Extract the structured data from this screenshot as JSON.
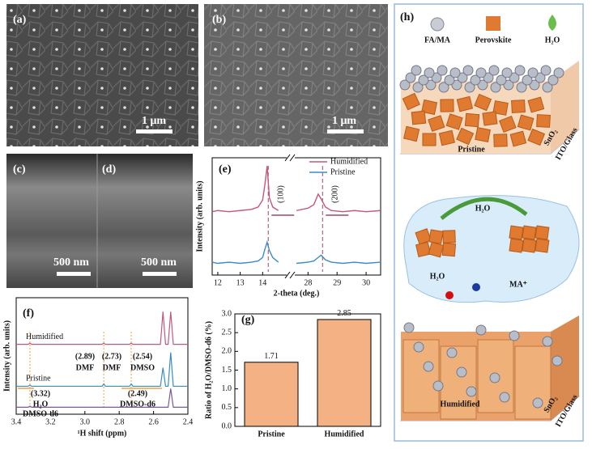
{
  "panels": {
    "a": {
      "label": "(a)",
      "scale_bar": "1 μm"
    },
    "b": {
      "label": "(b)",
      "scale_bar": "1 μm"
    },
    "c": {
      "label": "(c)",
      "scale_bar": "500 nm"
    },
    "d": {
      "label": "(d)",
      "scale_bar": "500 nm"
    }
  },
  "chart_data": [
    {
      "type": "line",
      "panel_label": "(e)",
      "x_label": "2-theta (deg.)",
      "y_label": "Intensity (arb. units)",
      "x": [
        11.75,
        12,
        12.5,
        13,
        13.5,
        13.8,
        14.0,
        14.1,
        14.2,
        14.3,
        14.45,
        14.7,
        15,
        27.6,
        28,
        28.2,
        28.35,
        28.45,
        28.6,
        28.8,
        29.2,
        29.6,
        30,
        30.5
      ],
      "xlim": [
        [
          11.75,
          15
        ],
        [
          27.6,
          30.5
        ]
      ],
      "xticks": [
        12,
        13,
        14,
        28,
        29,
        30
      ],
      "ylim": [
        0,
        10
      ],
      "series": [
        {
          "name": "Humidified",
          "color": "#c4587a",
          "values": [
            5.4,
            5.5,
            5.4,
            5.5,
            5.6,
            5.8,
            6.4,
            7.7,
            9.3,
            6.6,
            5.8,
            5.5,
            null,
            5.5,
            5.7,
            6.0,
            6.9,
            6.5,
            5.8,
            5.5,
            5.4,
            5.5,
            5.4,
            5.5
          ]
        },
        {
          "name": "Pristine",
          "color": "#3a8cc4",
          "values": [
            1.1,
            1.0,
            1.1,
            1.0,
            1.1,
            1.2,
            1.5,
            2.2,
            2.8,
            2.1,
            1.5,
            1.1,
            null,
            1.0,
            1.1,
            1.2,
            1.5,
            1.7,
            1.3,
            1.1,
            1.0,
            1.1,
            1.0,
            1.1
          ]
        }
      ],
      "peak_positions": [
        14.25,
        28.5
      ],
      "peak_labels": [
        "(100)",
        "(200)"
      ],
      "legend": "upper right"
    },
    {
      "type": "line",
      "panel_label": "(f)",
      "x_label": "¹H shift (ppm)",
      "y_label": "Intensity (arb. units)",
      "x": [
        3.4,
        3.33,
        3.32,
        3.31,
        2.9,
        2.89,
        2.88,
        2.74,
        2.73,
        2.72,
        2.56,
        2.545,
        2.53,
        2.515,
        2.5,
        2.485,
        2.47,
        2.4
      ],
      "xlim": [
        3.4,
        2.4
      ],
      "xticks": [
        3.4,
        3.2,
        {
          "value": 3,
          "label": "3.0"
        },
        2.8,
        2.6,
        2.4
      ],
      "ylim": [
        0,
        10
      ],
      "series": [
        {
          "name": "Humidified",
          "color": "#c4587a",
          "values": [
            6.0,
            6.0,
            6.1,
            6.0,
            6.0,
            6.1,
            6.0,
            6.0,
            6.1,
            6.0,
            6.0,
            8.8,
            6.0,
            6.0,
            8.8,
            6.0,
            6.0,
            6.0
          ]
        },
        {
          "name": "Pristine",
          "color": "#3a8cc4",
          "values": [
            2.4,
            2.4,
            2.5,
            2.4,
            2.4,
            2.6,
            2.4,
            2.4,
            2.6,
            2.4,
            2.4,
            4.0,
            2.4,
            2.4,
            5.3,
            2.4,
            2.4,
            2.4
          ]
        },
        {
          "color": "#7a5a9a",
          "values": [
            0.6,
            0.6,
            0.7,
            0.6,
            0.6,
            0.6,
            0.6,
            0.6,
            0.6,
            0.6,
            0.6,
            0.6,
            0.6,
            0.6,
            2.2,
            0.6,
            0.6,
            0.6
          ]
        }
      ],
      "marker_lines": [
        3.32,
        2.89,
        2.73
      ],
      "annotations": [
        "(2.89)",
        "DMF",
        "(2.73)",
        "DMF",
        "(2.54)",
        "DMSO",
        "(3.32)",
        "H₂O",
        "DMSO-d6",
        "(2.49)",
        "DMSO-d6"
      ]
    },
    {
      "type": "bar",
      "panel_label": "(g)",
      "y_label": "Ratio of H₂O/DMSO-d6 (%)",
      "categories": [
        "Pristine",
        "Humidified"
      ],
      "values": [
        1.71,
        2.85
      ],
      "color": "#f4b183",
      "ylim": [
        0,
        3.0
      ],
      "yticks": [
        {
          "value": 0,
          "label": "0.0"
        },
        {
          "value": 0.5,
          "label": "0.5"
        },
        {
          "value": 1,
          "label": "1.0"
        },
        {
          "value": 1.5,
          "label": "1.5"
        },
        {
          "value": 2,
          "label": "2.0"
        },
        {
          "value": 2.5,
          "label": "2.5"
        },
        {
          "value": 3,
          "label": "3.0"
        }
      ]
    }
  ],
  "schematic": {
    "label": "(h)",
    "legend": [
      "FA/MA",
      "Perovskite",
      "H₂O"
    ],
    "top_film": "Pristine",
    "top_layers": [
      "SnO₂",
      "ITO/Glass"
    ],
    "process": "H₂O",
    "molecules": [
      "H₂O",
      "MA⁺"
    ],
    "bottom_film": "Humidified",
    "bottom_layers": [
      "SnO₂",
      "ITO/Glass"
    ]
  }
}
